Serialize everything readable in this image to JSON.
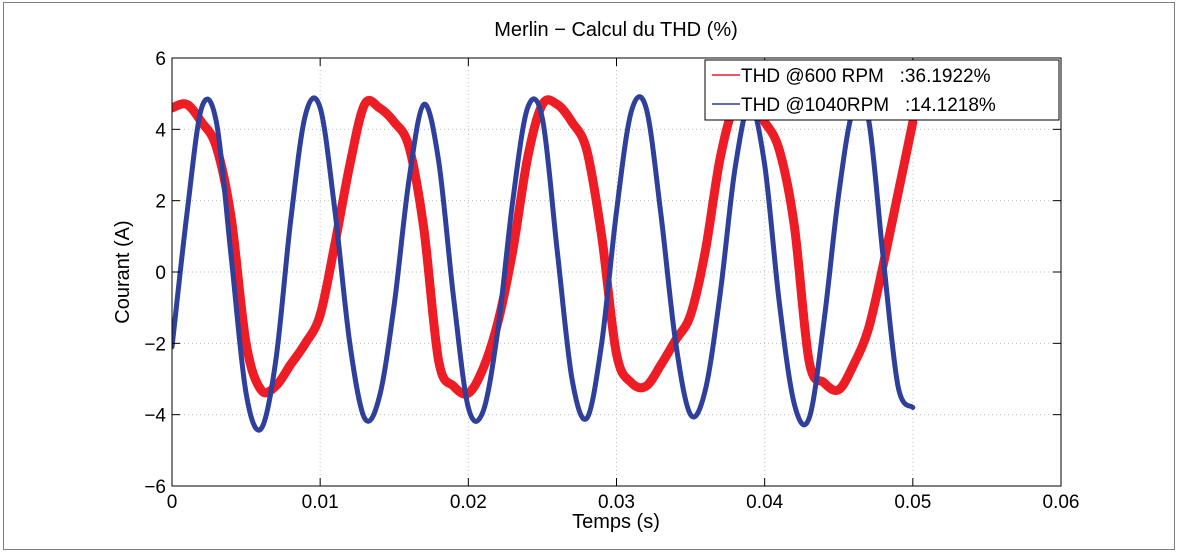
{
  "chart_data": {
    "type": "line",
    "title": "Merlin − Calcul du THD (%)",
    "xlabel": "Temps (s)",
    "ylabel": "Courant (A)",
    "xlim": [
      0,
      0.06
    ],
    "ylim": [
      -6,
      6
    ],
    "xticks": [
      "0",
      "0.01",
      "0.02",
      "0.03",
      "0.04",
      "0.05",
      "0.06"
    ],
    "yticks": [
      "−6",
      "−4",
      "−2",
      "0",
      "2",
      "4",
      "6"
    ],
    "grid": true,
    "legend_position": "top-right",
    "series": [
      {
        "name": "THD @600 RPM   :36.1922%",
        "color": "#ee1c25",
        "x": [
          0,
          0.001,
          0.002,
          0.003,
          0.004,
          0.005,
          0.006,
          0.007,
          0.008,
          0.009,
          0.01,
          0.011,
          0.012,
          0.013,
          0.014,
          0.015,
          0.016,
          0.017,
          0.018,
          0.019,
          0.02,
          0.021,
          0.022,
          0.023,
          0.024,
          0.025,
          0.026,
          0.027,
          0.028,
          0.029,
          0.03,
          0.031,
          0.032,
          0.033,
          0.034,
          0.035,
          0.036,
          0.037,
          0.038,
          0.039,
          0.04,
          0.041,
          0.042,
          0.043,
          0.044,
          0.045,
          0.046,
          0.047,
          0.048,
          0.049,
          0.05
        ],
        "y": [
          4.6,
          4.7,
          4.2,
          3.5,
          1.5,
          -2.0,
          -3.3,
          -3.2,
          -2.6,
          -2.0,
          -1.2,
          0.8,
          3.0,
          4.7,
          4.6,
          4.2,
          3.5,
          1.2,
          -2.5,
          -3.2,
          -3.4,
          -2.7,
          -1.4,
          0.6,
          3.2,
          4.7,
          4.7,
          4.2,
          3.4,
          1.0,
          -2.3,
          -3.1,
          -3.2,
          -2.6,
          -1.9,
          -1.2,
          0.6,
          3.2,
          4.7,
          4.6,
          4.2,
          3.4,
          1.3,
          -2.5,
          -3.1,
          -3.3,
          -2.6,
          -1.6,
          0.2,
          2.2,
          4.2
        ]
      },
      {
        "name": "THD @1040RPM   :14.1218%",
        "color": "#2e3f9c",
        "x": [
          0,
          0.001,
          0.002,
          0.003,
          0.004,
          0.005,
          0.006,
          0.007,
          0.008,
          0.009,
          0.01,
          0.011,
          0.012,
          0.013,
          0.014,
          0.015,
          0.016,
          0.017,
          0.018,
          0.019,
          0.02,
          0.021,
          0.022,
          0.023,
          0.024,
          0.025,
          0.026,
          0.027,
          0.028,
          0.029,
          0.03,
          0.031,
          0.032,
          0.033,
          0.034,
          0.035,
          0.036,
          0.037,
          0.038,
          0.039,
          0.04,
          0.041,
          0.042,
          0.043,
          0.044,
          0.045,
          0.046,
          0.047,
          0.048,
          0.049,
          0.05
        ],
        "y": [
          -2.1,
          1.6,
          4.6,
          4.2,
          0.4,
          -3.4,
          -4.4,
          -2.5,
          1.4,
          4.4,
          4.6,
          1.7,
          -2.0,
          -4.1,
          -3.5,
          -0.9,
          2.6,
          4.7,
          3.1,
          -0.7,
          -3.8,
          -3.9,
          -1.6,
          2.0,
          4.6,
          4.3,
          0.6,
          -3.0,
          -4.1,
          -2.0,
          1.7,
          4.5,
          4.6,
          1.6,
          -2.0,
          -4.0,
          -3.3,
          -0.6,
          2.9,
          4.7,
          3.0,
          -0.9,
          -3.7,
          -4.1,
          -1.4,
          2.2,
          4.6,
          4.3,
          0.4,
          -3.2,
          -3.8
        ]
      }
    ]
  }
}
